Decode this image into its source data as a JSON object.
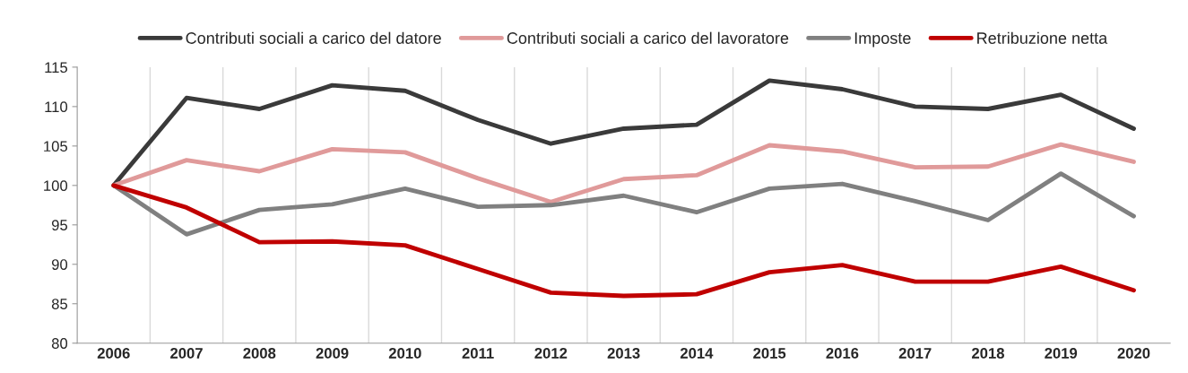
{
  "chart_data": {
    "type": "line",
    "categories": [
      "2006",
      "2007",
      "2008",
      "2009",
      "2010",
      "2011",
      "2012",
      "2013",
      "2014",
      "2015",
      "2016",
      "2017",
      "2018",
      "2019",
      "2020"
    ],
    "series": [
      {
        "name": "Contributi sociali a carico del datore",
        "color": "#3a3a3a",
        "values": [
          100,
          111.1,
          109.7,
          112.7,
          112.0,
          108.3,
          105.3,
          107.2,
          107.7,
          113.3,
          112.2,
          110.0,
          109.7,
          111.5,
          107.2
        ]
      },
      {
        "name": "Contributi sociali a carico del lavoratore",
        "color": "#e09a9a",
        "values": [
          100,
          103.2,
          101.8,
          104.6,
          104.2,
          100.9,
          97.9,
          100.8,
          101.3,
          105.1,
          104.3,
          102.3,
          102.4,
          105.2,
          103.0
        ]
      },
      {
        "name": "Imposte",
        "color": "#808080",
        "values": [
          100,
          93.8,
          96.9,
          97.6,
          99.6,
          97.3,
          97.5,
          98.7,
          96.6,
          99.6,
          100.2,
          98.0,
          95.6,
          101.5,
          96.1
        ]
      },
      {
        "name": "Retribuzione netta",
        "color": "#c00000",
        "values": [
          100,
          97.2,
          92.8,
          92.9,
          92.4,
          89.4,
          86.4,
          86.0,
          86.2,
          89.0,
          89.9,
          87.8,
          87.8,
          89.7,
          86.7
        ]
      }
    ],
    "ylim": [
      80,
      115
    ],
    "yticks": [
      80,
      85,
      90,
      95,
      100,
      105,
      110,
      115
    ],
    "grid": "x",
    "legend": "top",
    "marker": "none",
    "line_style": "solid"
  }
}
